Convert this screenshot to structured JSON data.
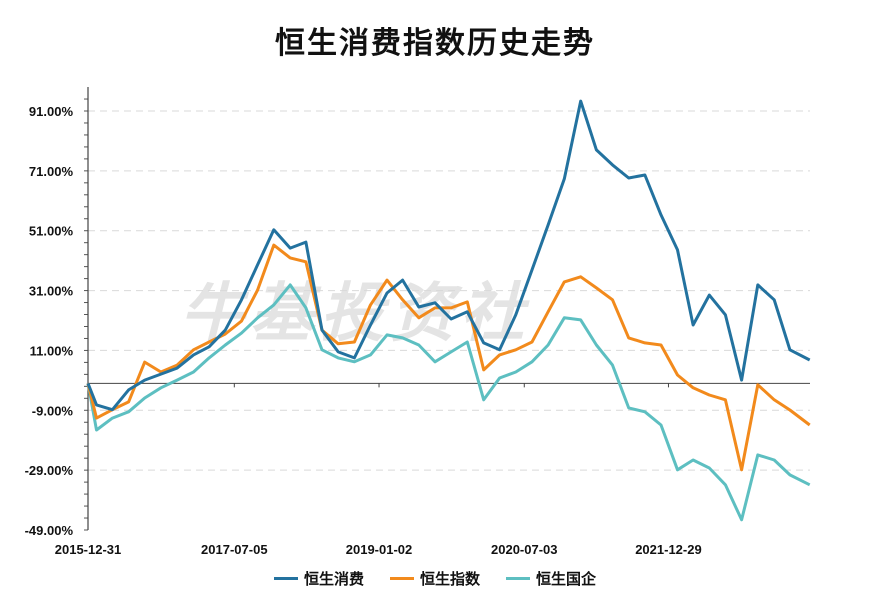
{
  "chart_data": {
    "type": "line",
    "title": "恒生消费指数历史走势",
    "xlabel": "",
    "ylabel": "",
    "xlim": [
      "2015-12-31",
      "2023-06-16"
    ],
    "ylim": [
      -49,
      99
    ],
    "yticks": [
      91,
      71,
      51,
      31,
      11,
      -9,
      -29,
      -49
    ],
    "ytick_labels": [
      "91.00%",
      "71.00%",
      "51.00%",
      "31.00%",
      "11.00%",
      "-9.00%",
      "-29.00%",
      "-49.00%"
    ],
    "xticks": [
      "2015-12-31",
      "2017-07-05",
      "2019-01-02",
      "2020-07-03",
      "2021-12-29"
    ],
    "grid": "horizontal dashed",
    "legend": "bottom",
    "watermark": "牛基投资社",
    "x": [
      "2015-12-31",
      "2016-02",
      "2016-04",
      "2016-06",
      "2016-08",
      "2016-10",
      "2016-12",
      "2017-02",
      "2017-04",
      "2017-06",
      "2017-08",
      "2017-10",
      "2017-12",
      "2018-02",
      "2018-04",
      "2018-06",
      "2018-08",
      "2018-10",
      "2018-12",
      "2019-02",
      "2019-04",
      "2019-06",
      "2019-08",
      "2019-10",
      "2019-12",
      "2020-02",
      "2020-04",
      "2020-06",
      "2020-08",
      "2020-10",
      "2020-12",
      "2021-02",
      "2021-04",
      "2021-06",
      "2021-08",
      "2021-10",
      "2021-12",
      "2022-02",
      "2022-04",
      "2022-06",
      "2022-08",
      "2022-10",
      "2022-12",
      "2023-02",
      "2023-04",
      "2023-06-15"
    ],
    "series": [
      {
        "name": "恒生消费",
        "color": "#23729f",
        "values": [
          0,
          -7.2,
          -8.8,
          -2.2,
          1.1,
          3.1,
          5.1,
          9.5,
          12.2,
          17.8,
          27.9,
          39.6,
          51.3,
          45.2,
          47.2,
          17.8,
          10.5,
          8.5,
          19.5,
          30.2,
          34.5,
          25.5,
          26.9,
          21.5,
          23.9,
          13.5,
          11.2,
          22.9,
          37.9,
          52.9,
          68.3,
          94.3,
          78.0,
          73.0,
          68.6,
          69.6,
          56.3,
          44.6,
          19.5,
          29.5,
          22.9,
          1.1,
          32.9,
          27.9,
          11.2,
          7.8
        ]
      },
      {
        "name": "恒生指数",
        "color": "#f28a1c",
        "values": [
          0,
          -11.6,
          -8.8,
          -6.2,
          7.1,
          3.8,
          6.1,
          11.2,
          13.8,
          16.5,
          20.8,
          31.2,
          46.2,
          41.9,
          40.6,
          17.8,
          13.2,
          13.8,
          26.2,
          34.5,
          27.9,
          21.9,
          25.2,
          25.2,
          27.2,
          4.5,
          9.5,
          11.2,
          13.8,
          23.9,
          33.9,
          35.6,
          31.9,
          27.9,
          15.2,
          13.5,
          12.8,
          2.8,
          -1.5,
          -3.9,
          -5.5,
          -28.9,
          -0.5,
          -5.5,
          -8.9,
          -13.9
        ]
      },
      {
        "name": "恒生国企",
        "color": "#5dbfc1",
        "values": [
          0,
          -15.6,
          -11.6,
          -9.5,
          -4.9,
          -1.5,
          1.1,
          3.8,
          8.5,
          12.8,
          16.8,
          21.9,
          26.2,
          32.9,
          25.2,
          11.2,
          8.5,
          7.2,
          9.5,
          16.2,
          15.2,
          12.8,
          7.2,
          10.5,
          13.8,
          -5.5,
          1.8,
          3.8,
          7.2,
          12.8,
          21.9,
          21.2,
          12.8,
          6.1,
          -8.2,
          -9.5,
          -13.9,
          -28.9,
          -25.6,
          -28.3,
          -33.9,
          -45.6,
          -23.9,
          -25.6,
          -30.6,
          -33.9
        ]
      }
    ]
  }
}
